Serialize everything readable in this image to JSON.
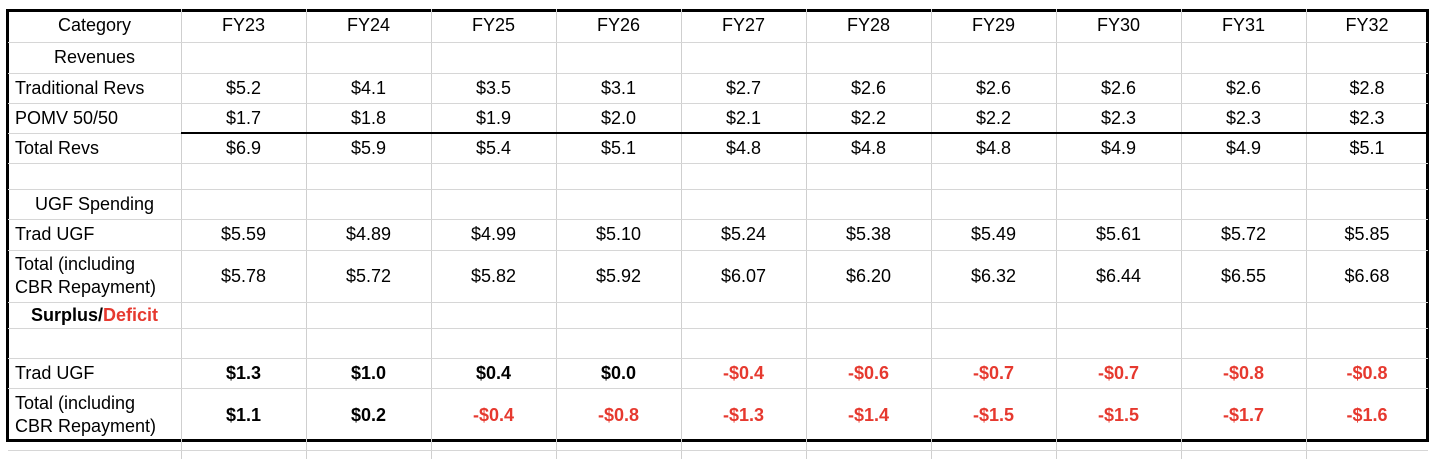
{
  "header": {
    "category": "Category",
    "years": [
      "FY23",
      "FY24",
      "FY25",
      "FY26",
      "FY27",
      "FY28",
      "FY29",
      "FY30",
      "FY31",
      "FY32"
    ]
  },
  "sections": {
    "revenues": "Revenues",
    "ugf_spending": "UGF Spending",
    "surplus_label": "Surplus",
    "slash": "/",
    "deficit_label": "Deficit"
  },
  "rows": {
    "traditional_revs": {
      "label": "Traditional Revs",
      "values": [
        "$5.2",
        "$4.1",
        "$3.5",
        "$3.1",
        "$2.7",
        "$2.6",
        "$2.6",
        "$2.6",
        "$2.6",
        "$2.8"
      ]
    },
    "pomv": {
      "label": "POMV 50/50",
      "values": [
        "$1.7",
        "$1.8",
        "$1.9",
        "$2.0",
        "$2.1",
        "$2.2",
        "$2.2",
        "$2.3",
        "$2.3",
        "$2.3"
      ]
    },
    "total_revs": {
      "label": "Total Revs",
      "values": [
        "$6.9",
        "$5.9",
        "$5.4",
        "$5.1",
        "$4.8",
        "$4.8",
        "$4.8",
        "$4.9",
        "$4.9",
        "$5.1"
      ]
    },
    "trad_ugf_spending": {
      "label": "Trad UGF",
      "values": [
        "$5.59",
        "$4.89",
        "$4.99",
        "$5.10",
        "$5.24",
        "$5.38",
        "$5.49",
        "$5.61",
        "$5.72",
        "$5.85"
      ]
    },
    "total_spending": {
      "label_line1": "Total (including",
      "label_line2": "CBR Repayment)",
      "values": [
        "$5.78",
        "$5.72",
        "$5.82",
        "$5.92",
        "$6.07",
        "$6.20",
        "$6.32",
        "$6.44",
        "$6.55",
        "$6.68"
      ]
    },
    "trad_ugf_surplus": {
      "label": "Trad UGF",
      "values": [
        "$1.3",
        "$1.0",
        "$0.4",
        "$0.0",
        "-$0.4",
        "-$0.6",
        "-$0.7",
        "-$0.7",
        "-$0.8",
        "-$0.8"
      ]
    },
    "total_surplus": {
      "label_line1": "Total (including",
      "label_line2": "CBR Repayment)",
      "values": [
        "$1.1",
        "$0.2",
        "-$0.4",
        "-$0.8",
        "-$1.3",
        "-$1.4",
        "-$1.5",
        "-$1.5",
        "-$1.7",
        "-$1.6"
      ]
    }
  },
  "colors": {
    "deficit": "#e6392f",
    "gridline": "#d6d6d6",
    "border": "#000000"
  }
}
